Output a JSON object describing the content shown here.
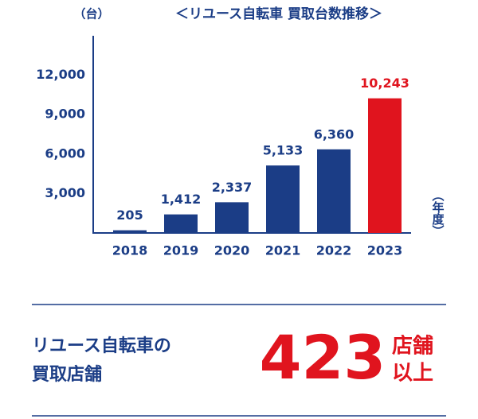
{
  "chart_data": {
    "type": "bar",
    "title": "＜リユース自転車 買取台数推移＞",
    "y_axis_label": "（台）",
    "x_axis_label": "（年度）",
    "categories": [
      "2018",
      "2019",
      "2020",
      "2021",
      "2022",
      "2023"
    ],
    "values": [
      205,
      1412,
      2337,
      5133,
      6360,
      10243
    ],
    "value_labels": [
      "205",
      "1,412",
      "2,337",
      "5,133",
      "6,360",
      "10,243"
    ],
    "colors": [
      "#1b3d86",
      "#1b3d86",
      "#1b3d86",
      "#1b3d86",
      "#1b3d86",
      "#e0141e"
    ],
    "ylim": [
      0,
      15000
    ],
    "yticks": [
      {
        "value": 3000,
        "label": "3,000"
      },
      {
        "value": 6000,
        "label": "6,000"
      },
      {
        "value": 9000,
        "label": "9,000"
      },
      {
        "value": 12000,
        "label": "12,000"
      }
    ],
    "grid": false
  },
  "summary": {
    "label_lines": [
      "リユース自転車の",
      "買取店舗"
    ],
    "number": 423,
    "unit_lines": [
      "店舗",
      "以上"
    ]
  }
}
